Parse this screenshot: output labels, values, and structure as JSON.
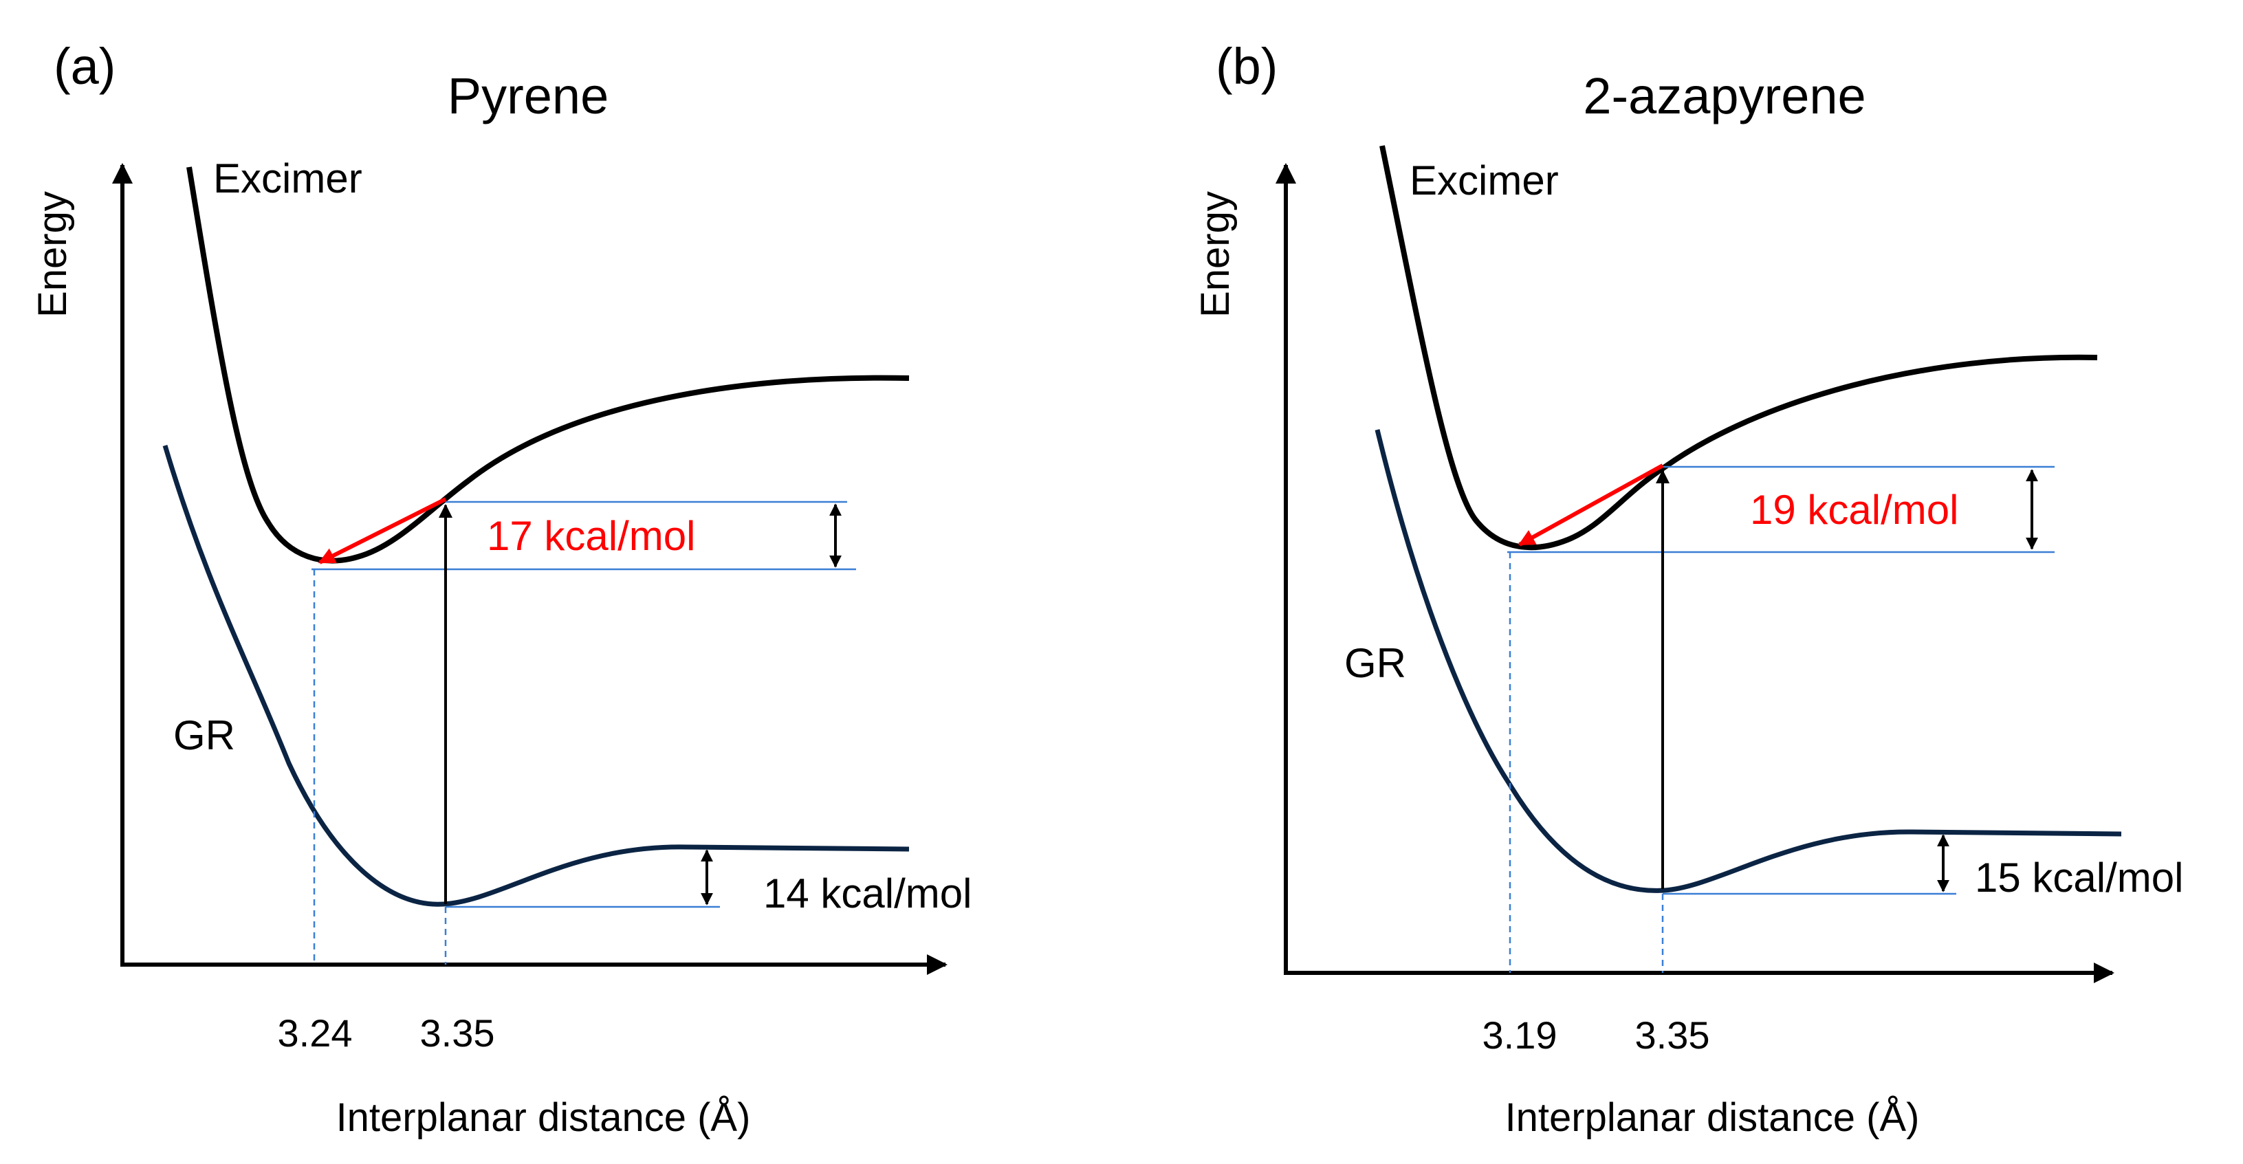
{
  "panels": [
    {
      "letter": "(a)",
      "title": "Pyrene",
      "y_axis_label": "Energy",
      "x_axis_label": "Interplanar distance (Å)",
      "excimer_label": "Excimer",
      "ground_label": "GR",
      "tick_min": "3.24",
      "tick_ref": "3.35",
      "excimer_barrier": "17 kcal/mol",
      "ground_barrier": "14 kcal/mol"
    },
    {
      "letter": "(b)",
      "title": "2-azapyrene",
      "y_axis_label": "Energy",
      "x_axis_label": "Interplanar distance (Å)",
      "excimer_label": "Excimer",
      "ground_label": "GR",
      "tick_min": "3.19",
      "tick_ref": "3.35",
      "excimer_barrier": "19 kcal/mol",
      "ground_barrier": "15 kcal/mol"
    }
  ],
  "colors": {
    "excimer_curve": "#000000",
    "ground_curve": "#0b2444",
    "guide_lines": "#3a7fd5",
    "relaxation_arrow": "#ff0000",
    "excimer_energy_text": "#ff0000"
  }
}
